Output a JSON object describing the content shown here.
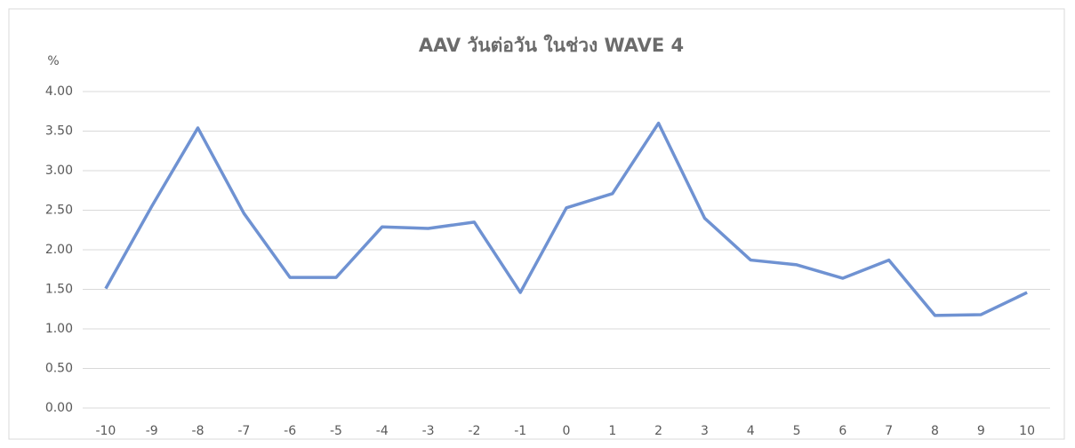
{
  "chart_data": {
    "type": "line",
    "title": "AAV วันต่อวัน ในช่วง WAVE 4",
    "y_label": "%",
    "categories": [
      "-10",
      "-9",
      "-8",
      "-7",
      "-6",
      "-5",
      "-4",
      "-3",
      "-2",
      "-1",
      "0",
      "1",
      "2",
      "3",
      "4",
      "5",
      "6",
      "7",
      "8",
      "9",
      "10"
    ],
    "series": [
      {
        "color": "#6f92d2",
        "values": [
          1.51,
          2.55,
          3.54,
          2.46,
          1.65,
          1.65,
          2.29,
          2.27,
          2.35,
          1.46,
          2.53,
          2.71,
          3.6,
          2.4,
          1.87,
          1.81,
          1.64,
          1.87,
          1.17,
          1.18,
          1.46
        ]
      }
    ],
    "ylim": [
      0,
      4
    ],
    "yticks": [
      {
        "value": 0,
        "label": "0.00"
      },
      {
        "value": 0.5,
        "label": "0.50"
      },
      {
        "value": 1,
        "label": "1.00"
      },
      {
        "value": 1.5,
        "label": "1.50"
      },
      {
        "value": 2,
        "label": "2.00"
      },
      {
        "value": 2.5,
        "label": "2.50"
      },
      {
        "value": 3,
        "label": "3.00"
      },
      {
        "value": 3.5,
        "label": "3.50"
      },
      {
        "value": 4,
        "label": "4.00"
      }
    ],
    "grid": true
  }
}
